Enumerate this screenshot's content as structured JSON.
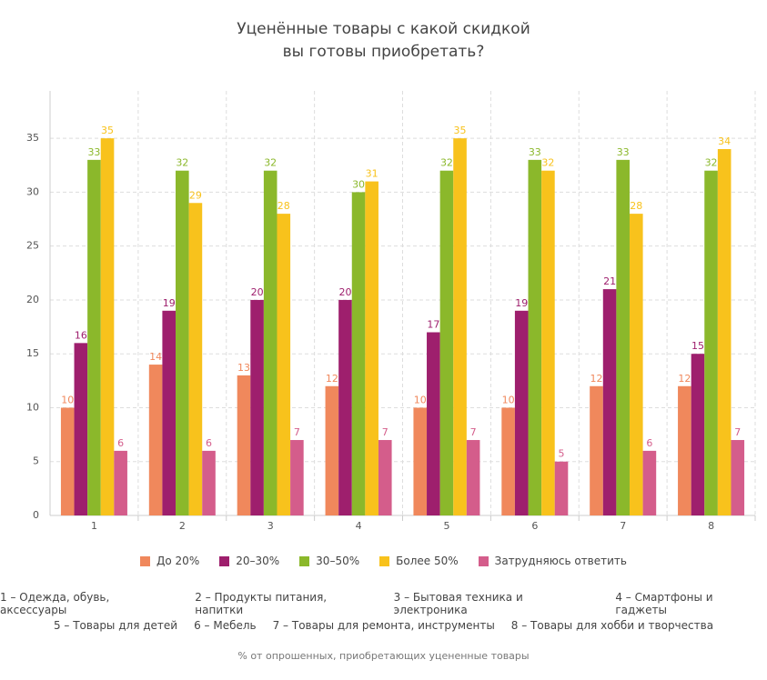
{
  "chart_data": {
    "type": "bar",
    "title": "Уценённые товары с какой скидкой вы готовы приобретать?",
    "categories": [
      "1",
      "2",
      "3",
      "4",
      "5",
      "6",
      "7",
      "8"
    ],
    "series": [
      {
        "name": "До 20%",
        "color": "#f0885c",
        "values": [
          10,
          14,
          13,
          12,
          10,
          10,
          12,
          12
        ]
      },
      {
        "name": "20–30%",
        "color": "#9e1f6d",
        "values": [
          16,
          19,
          20,
          20,
          17,
          19,
          21,
          15
        ]
      },
      {
        "name": "30–50%",
        "color": "#8bb82b",
        "values": [
          33,
          32,
          32,
          30,
          32,
          33,
          33,
          32
        ]
      },
      {
        "name": "Более 50%",
        "color": "#f8c21c",
        "values": [
          35,
          29,
          28,
          31,
          35,
          32,
          28,
          34
        ]
      },
      {
        "name": "Затрудняюсь ответить",
        "color": "#d45d8b",
        "values": [
          6,
          6,
          7,
          7,
          7,
          5,
          6,
          7
        ]
      }
    ],
    "ylim": [
      0,
      39.4
    ],
    "yticks": [
      0,
      5,
      10,
      15,
      20,
      25,
      30,
      35
    ],
    "grid": true,
    "category_notes": [
      [
        "1 – Одежда, обувь, аксессуары",
        "2 – Продукты питания, напитки",
        "3 – Бытовая техника и электроника",
        "4 – Смартфоны и гаджеты"
      ],
      [
        "5 – Товары для детей",
        "6 – Мебель",
        "7 – Товары для ремонта, инструменты",
        "8 – Товары для хобби и творчества"
      ]
    ],
    "source": "% от опрошенных, приобретающих уцененные товары"
  }
}
